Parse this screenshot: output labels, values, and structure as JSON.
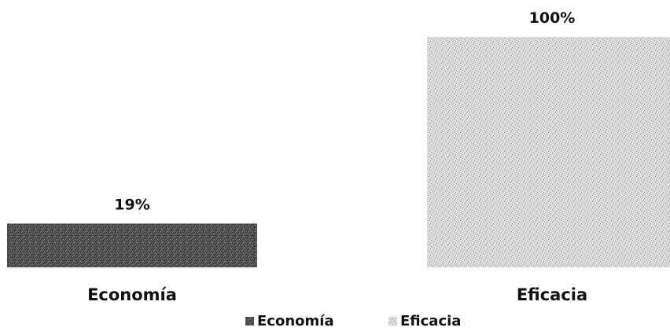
{
  "chart_data": {
    "type": "bar",
    "title": "",
    "xlabel": "",
    "ylabel": "",
    "categories": [
      "Economía",
      "Eficacia"
    ],
    "values": [
      19,
      100
    ],
    "value_labels": [
      "19%",
      "100%"
    ],
    "ylim": [
      0,
      100
    ],
    "grid": false,
    "legend_position": "bottom-center",
    "series": [
      {
        "name": "Economía",
        "values": [
          19,
          null
        ],
        "color": "#4a4a4a",
        "pattern": "dark-speckle"
      },
      {
        "name": "Eficacia",
        "values": [
          null,
          100
        ],
        "color": "#d8d8d8",
        "pattern": "light-speckle"
      }
    ],
    "legend": [
      "Economía",
      "Eficacia"
    ]
  }
}
